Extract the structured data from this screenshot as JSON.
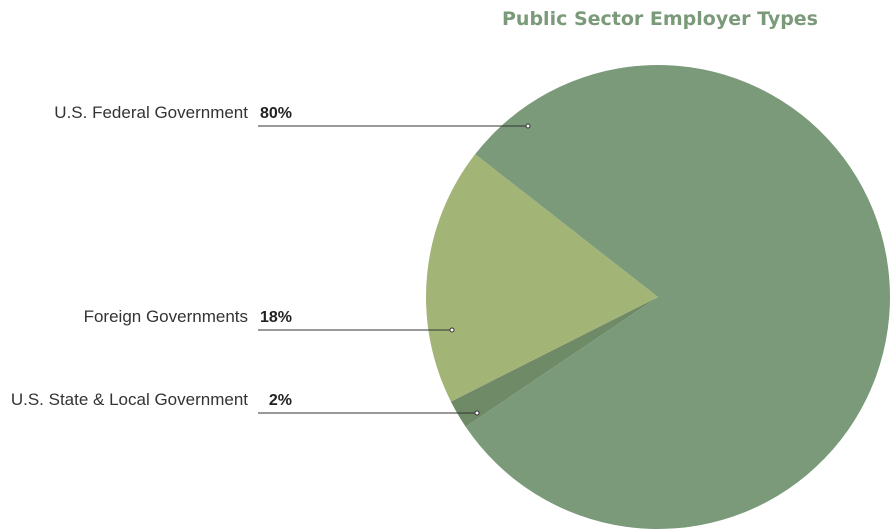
{
  "chart_data": {
    "type": "pie",
    "title": "Public Sector Employer Types",
    "slices": [
      {
        "label": "U.S. Federal Government",
        "value": 80,
        "display": "80%",
        "color": "#7a9a79"
      },
      {
        "label": "Foreign Governments",
        "value": 18,
        "display": "18%",
        "color": "#a3b477"
      },
      {
        "label": "U.S. State & Local Government",
        "value": 2,
        "display": "2%",
        "color": "#6f8a67"
      }
    ],
    "legend": "none"
  }
}
